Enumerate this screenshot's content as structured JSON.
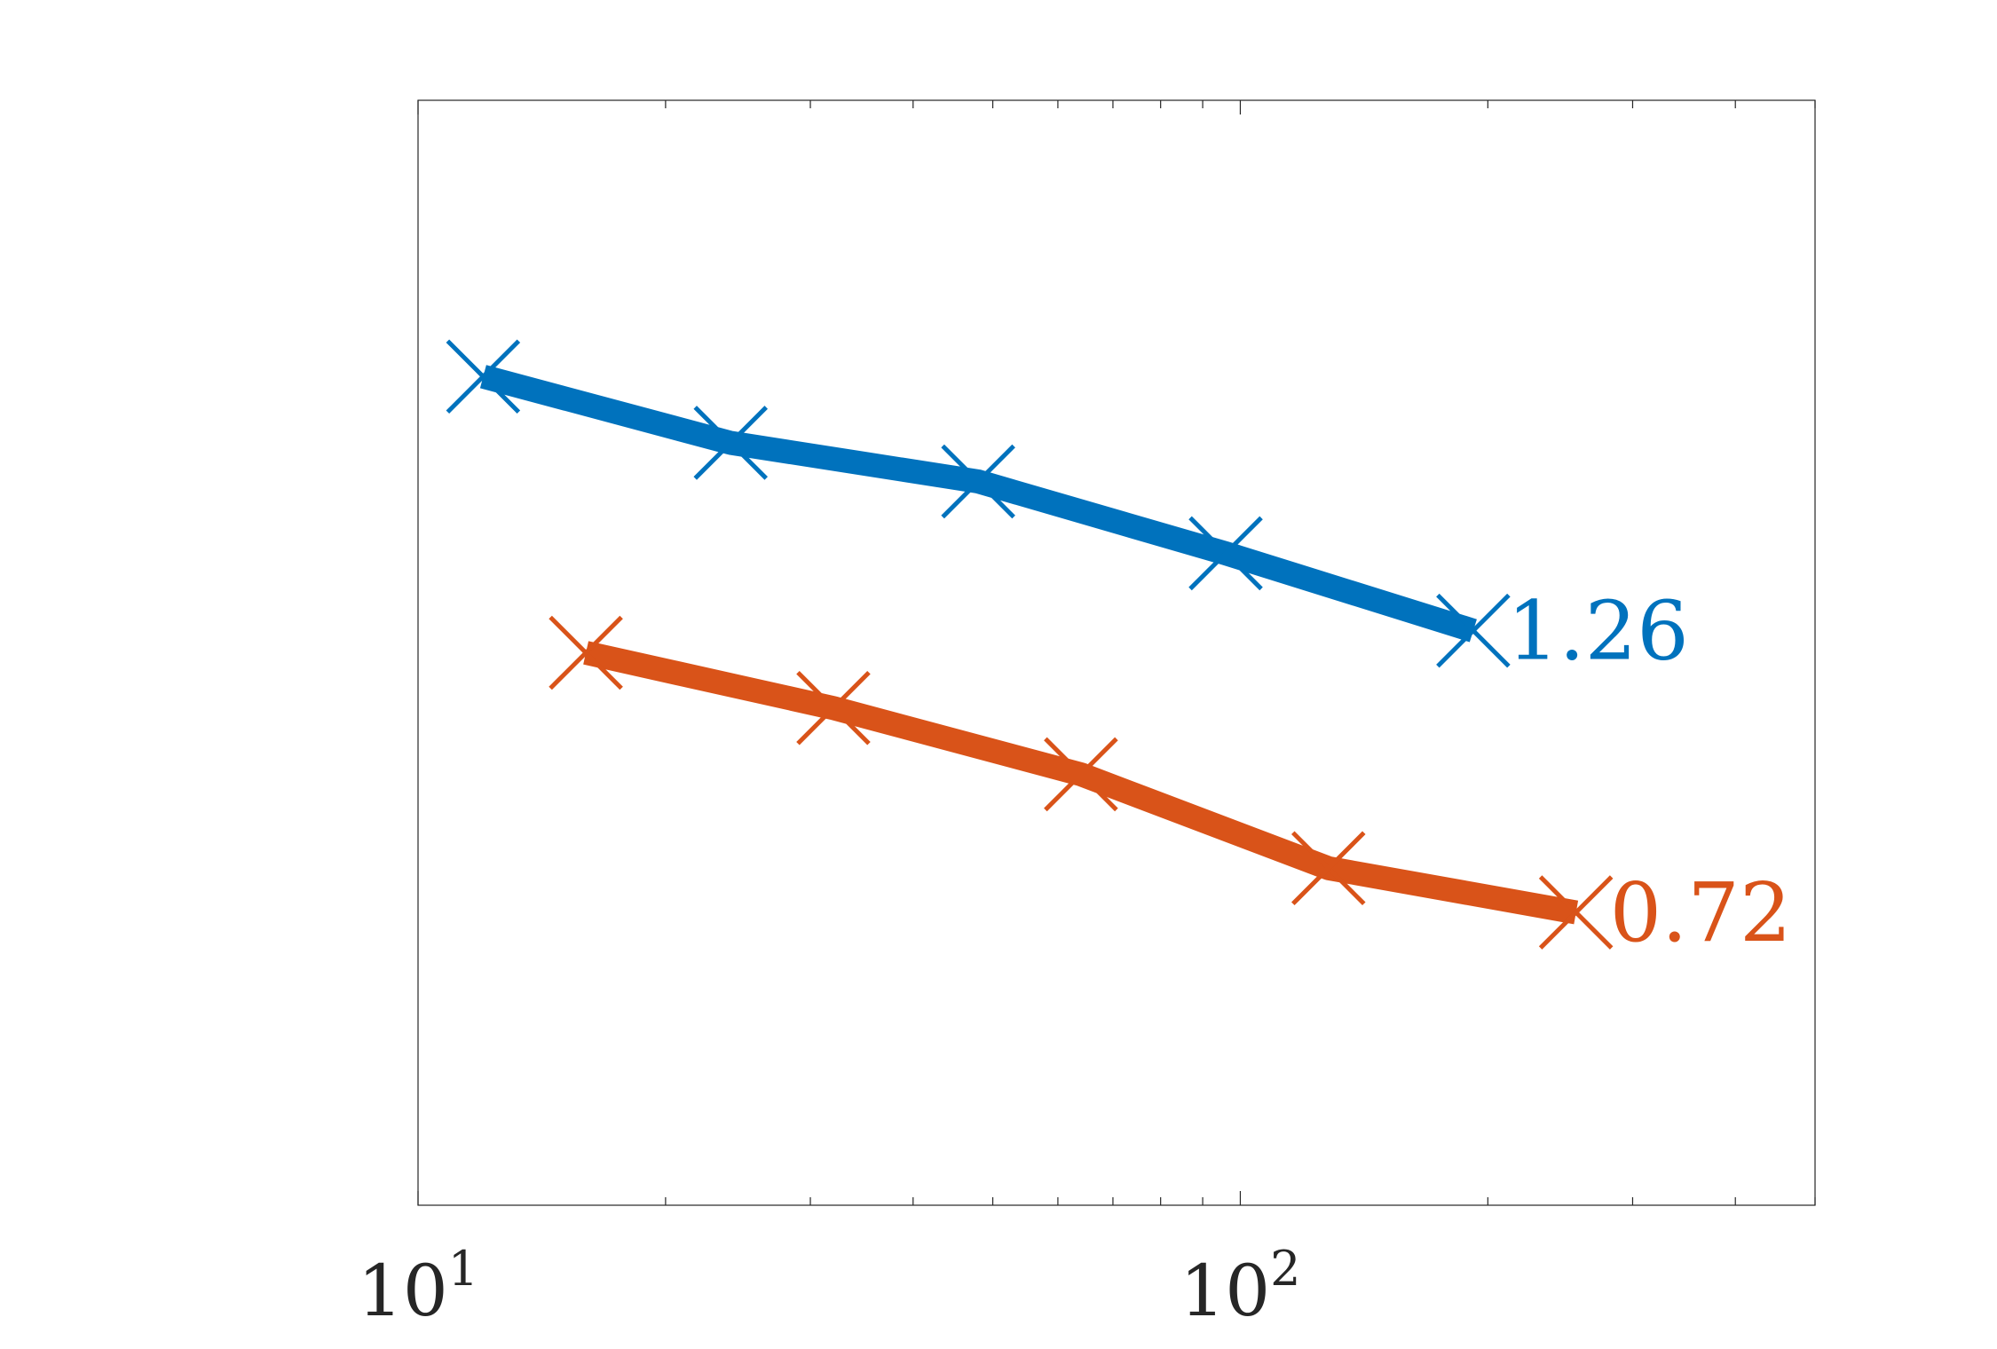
{
  "chart_data": {
    "type": "line",
    "title": "",
    "xlabel": "",
    "ylabel": "",
    "x_scale": "log",
    "xlim": [
      10,
      500
    ],
    "ylim": [
      0,
      1
    ],
    "grid": false,
    "x_tick_labels": [
      {
        "value": 10,
        "base": "10",
        "exp": "1"
      },
      {
        "value": 100,
        "base": "10",
        "exp": "2"
      }
    ],
    "series": [
      {
        "color": "#0072BD",
        "end_label": "1.26",
        "x": [
          12,
          24,
          48,
          96,
          192
        ],
        "y": [
          0.75,
          0.69,
          0.655,
          0.59,
          0.52
        ]
      },
      {
        "color": "#D95319",
        "end_label": "0.72",
        "x": [
          16,
          32,
          64,
          128,
          256
        ],
        "y": [
          0.5,
          0.45,
          0.39,
          0.305,
          0.265
        ]
      }
    ]
  }
}
